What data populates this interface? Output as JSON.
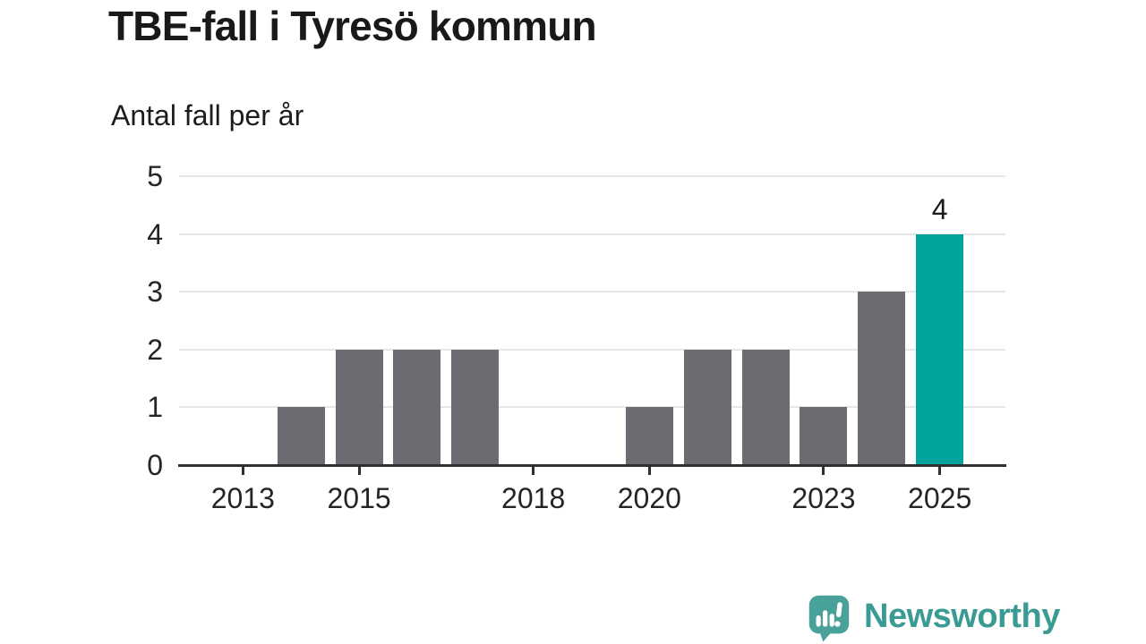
{
  "title": "TBE-fall i Tyresö kommun",
  "subtitle": "Antal fall per år",
  "chart_data": {
    "type": "bar",
    "x": [
      2012,
      2013,
      2014,
      2015,
      2016,
      2017,
      2018,
      2019,
      2020,
      2021,
      2022,
      2023,
      2024,
      2025
    ],
    "values": [
      0,
      0,
      1,
      2,
      2,
      2,
      0,
      0,
      1,
      2,
      2,
      1,
      3,
      4
    ],
    "title": "TBE-fall i Tyresö kommun",
    "subtitle": "Antal fall per år",
    "xlabel": "",
    "ylabel": "",
    "ylim": [
      0,
      5
    ],
    "yticks": [
      0,
      1,
      2,
      3,
      4,
      5
    ],
    "xticks": [
      2013,
      2015,
      2018,
      2020,
      2023,
      2025
    ],
    "xlim": [
      2011.9,
      2026.1
    ],
    "grid": true,
    "legend": false,
    "highlight_x": 2025,
    "bar_color": "#6d6a72",
    "highlight_color": "#00a49c",
    "grid_color": "#e6e6e6",
    "axis_color": "#2f2f2f",
    "annotations": [
      {
        "x": 2025,
        "y": 4,
        "text": "4"
      }
    ]
  },
  "footer": {
    "brand": "Newsworthy",
    "brand_color": "#3a9b94",
    "logo_icon": "newsworthy-speech-bubble-bar-chart-icon",
    "icon_color": "#48a29a"
  }
}
